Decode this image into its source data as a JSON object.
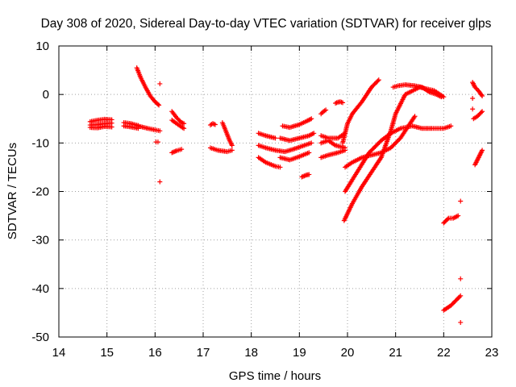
{
  "chart_data": {
    "type": "scatter",
    "title": "Day 308 of 2020, Sidereal Day-to-day VTEC variation (SDTVAR) for receiver glps",
    "xlabel": "GPS time / hours",
    "ylabel": "SDTVAR / TECUs",
    "xlim": [
      14,
      23
    ],
    "ylim": [
      -50,
      10
    ],
    "xticks": [
      14,
      15,
      16,
      17,
      18,
      19,
      20,
      21,
      22,
      23
    ],
    "yticks": [
      10,
      0,
      -10,
      -20,
      -30,
      -40,
      -50
    ],
    "xtick_labels": [
      "14",
      "15",
      "16",
      "17",
      "18",
      "19",
      "20",
      "21",
      "22",
      "23"
    ],
    "ytick_labels": [
      "10",
      "0",
      "-10",
      "-20",
      "-30",
      "-40",
      "-50"
    ],
    "grid": true,
    "marker": "+",
    "color": "#ff0000",
    "segments": [
      {
        "x": [
          14.65,
          14.8,
          14.95,
          15.1
        ],
        "y": [
          -5.6,
          -5.3,
          -5.1,
          -5.2
        ]
      },
      {
        "x": [
          14.65,
          14.8,
          14.95,
          15.1
        ],
        "y": [
          -6.3,
          -6.2,
          -6.0,
          -5.9
        ]
      },
      {
        "x": [
          14.65,
          14.8,
          14.95,
          15.1
        ],
        "y": [
          -6.8,
          -6.9,
          -6.6,
          -6.7
        ]
      },
      {
        "x": [
          15.35,
          15.5,
          15.65
        ],
        "y": [
          -5.8,
          -6.0,
          -6.4
        ]
      },
      {
        "x": [
          15.35,
          15.5,
          15.65
        ],
        "y": [
          -6.5,
          -6.7,
          -7.0
        ]
      },
      {
        "x": [
          15.65,
          15.85,
          16.0,
          16.1
        ],
        "y": [
          -6.5,
          -7.0,
          -7.3,
          -7.5
        ]
      },
      {
        "x": [
          15.62,
          15.7,
          15.8,
          15.9,
          16.0,
          16.08
        ],
        "y": [
          5.5,
          3.5,
          1.5,
          -0.3,
          -1.5,
          -2.2
        ]
      },
      {
        "x": [
          16.1
        ],
        "y": [
          2.2
        ]
      },
      {
        "x": [
          16.1
        ],
        "y": [
          -18.0
        ]
      },
      {
        "x": [
          16.02,
          16.06
        ],
        "y": [
          -9.8,
          -9.8
        ]
      },
      {
        "x": [
          16.35,
          16.45,
          16.55,
          16.6
        ],
        "y": [
          -3.5,
          -4.8,
          -5.8,
          -6.0
        ]
      },
      {
        "x": [
          16.35,
          16.45,
          16.55,
          16.6
        ],
        "y": [
          -5.3,
          -6.0,
          -6.7,
          -7.0
        ]
      },
      {
        "x": [
          16.35,
          16.45,
          16.55
        ],
        "y": [
          -12.0,
          -11.6,
          -11.3
        ]
      },
      {
        "x": [
          17.15,
          17.2,
          17.25
        ],
        "y": [
          -6.3,
          -6.0,
          -6.2
        ]
      },
      {
        "x": [
          17.4,
          17.45,
          17.55,
          17.6
        ],
        "y": [
          -5.8,
          -7.0,
          -9.5,
          -10.5
        ]
      },
      {
        "x": [
          17.15,
          17.3,
          17.5,
          17.6
        ],
        "y": [
          -11.0,
          -11.5,
          -11.8,
          -11.5
        ]
      },
      {
        "x": [
          18.15,
          18.3,
          18.5
        ],
        "y": [
          -8.0,
          -8.5,
          -9.0
        ]
      },
      {
        "x": [
          18.65,
          18.8,
          19.0,
          19.15,
          19.25
        ],
        "y": [
          -6.5,
          -6.8,
          -6.2,
          -5.5,
          -5.0
        ]
      },
      {
        "x": [
          18.15,
          18.3,
          18.5,
          18.7,
          18.9,
          19.1,
          19.25
        ],
        "y": [
          -10.5,
          -11.0,
          -11.5,
          -11.8,
          -11.2,
          -10.5,
          -10.0
        ]
      },
      {
        "x": [
          18.15,
          18.3,
          18.5,
          18.6
        ],
        "y": [
          -13.0,
          -14.0,
          -14.8,
          -15.0
        ]
      },
      {
        "x": [
          18.6,
          18.8,
          19.0,
          19.2,
          19.3
        ],
        "y": [
          -9.0,
          -9.5,
          -9.0,
          -8.5,
          -8.0
        ]
      },
      {
        "x": [
          18.6,
          18.8,
          19.0,
          19.2
        ],
        "y": [
          -13.0,
          -13.5,
          -12.8,
          -12.0
        ]
      },
      {
        "x": [
          19.05,
          19.1,
          19.15,
          19.2
        ],
        "y": [
          -17.0,
          -16.8,
          -16.6,
          -16.5
        ]
      },
      {
        "x": [
          19.45,
          19.5,
          19.55
        ],
        "y": [
          -4.0,
          -3.5,
          -3.2
        ]
      },
      {
        "x": [
          19.75,
          19.8,
          19.85,
          19.9
        ],
        "y": [
          -1.8,
          -1.6,
          -1.5,
          -1.7
        ]
      },
      {
        "x": [
          19.45,
          19.6,
          19.8,
          19.95
        ],
        "y": [
          -8.5,
          -9.0,
          -9.0,
          -8.0
        ]
      },
      {
        "x": [
          19.45,
          19.6,
          19.75,
          19.95
        ],
        "y": [
          -10.0,
          -9.5,
          -10.5,
          -11.0
        ]
      },
      {
        "x": [
          19.45,
          19.6,
          19.8,
          19.95
        ],
        "y": [
          -13.0,
          -12.5,
          -12.0,
          -11.5
        ]
      },
      {
        "x": [
          19.9,
          20.0,
          20.1,
          20.3,
          20.5,
          20.65
        ],
        "y": [
          -10.0,
          -6.0,
          -4.0,
          -1.5,
          1.5,
          3.0
        ]
      },
      {
        "x": [
          19.95,
          20.1,
          20.3,
          20.5,
          20.7,
          20.9,
          21.1,
          21.3,
          21.4
        ],
        "y": [
          -15.0,
          -14.0,
          -13.0,
          -12.5,
          -12.0,
          -11.0,
          -9.0,
          -6.0,
          -4.5
        ]
      },
      {
        "x": [
          19.95,
          20.2,
          20.45,
          20.7,
          20.9,
          21.1,
          21.35,
          21.55,
          21.75,
          22.0,
          22.15
        ],
        "y": [
          -20.0,
          -16.0,
          -12.0,
          -9.5,
          -8.0,
          -7.0,
          -6.5,
          -7.0,
          -7.0,
          -7.0,
          -6.5
        ]
      },
      {
        "x": [
          19.93,
          20.1,
          20.3,
          20.5,
          20.7,
          20.9,
          21.0,
          21.2,
          21.5,
          21.8,
          22.0
        ],
        "y": [
          -26.0,
          -22.5,
          -19.0,
          -16.0,
          -13.0,
          -7.5,
          -4.0,
          0.0,
          1.5,
          0.8,
          -0.5
        ]
      },
      {
        "x": [
          20.95,
          21.05,
          21.2,
          21.4,
          21.55,
          21.7,
          21.85,
          21.95
        ],
        "y": [
          1.5,
          1.8,
          2.0,
          1.8,
          1.5,
          0.5,
          0.0,
          -0.5
        ]
      },
      {
        "x": [
          22.0,
          22.1,
          22.2,
          22.3
        ],
        "y": [
          -26.5,
          -25.5,
          -25.5,
          -25.0
        ]
      },
      {
        "x": [
          22.0,
          22.15,
          22.3,
          22.35
        ],
        "y": [
          -44.5,
          -43.5,
          -42.0,
          -41.5
        ]
      },
      {
        "x": [
          22.35
        ],
        "y": [
          -38.0
        ]
      },
      {
        "x": [
          22.35
        ],
        "y": [
          -47.0
        ]
      },
      {
        "x": [
          22.35
        ],
        "y": [
          -22.0
        ]
      },
      {
        "x": [
          22.6,
          22.65,
          22.72,
          22.8
        ],
        "y": [
          2.5,
          1.5,
          0.8,
          -0.3
        ]
      },
      {
        "x": [
          22.6
        ],
        "y": [
          -0.8
        ]
      },
      {
        "x": [
          22.6
        ],
        "y": [
          -3.0
        ]
      },
      {
        "x": [
          22.62,
          22.7,
          22.8
        ],
        "y": [
          -5.0,
          -4.5,
          -3.5
        ]
      },
      {
        "x": [
          22.65,
          22.7,
          22.75,
          22.8
        ],
        "y": [
          -14.5,
          -13.5,
          -12.5,
          -11.5
        ]
      }
    ]
  }
}
